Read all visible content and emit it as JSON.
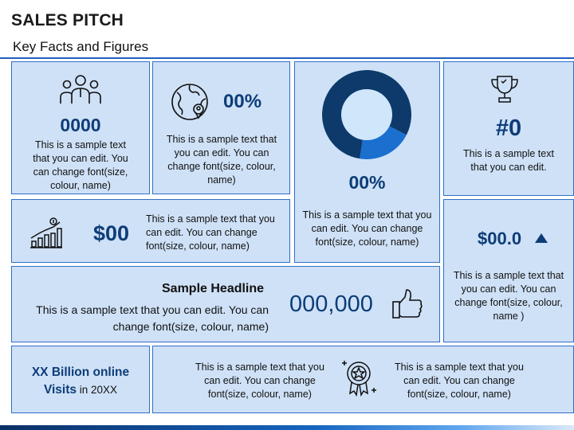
{
  "header": {
    "title": "SALES PITCH",
    "subtitle": "Key Facts and Figures"
  },
  "panel_people": {
    "icon": "people-group-icon",
    "value": "0000",
    "text": "This is a sample text that you can edit. You can change font(size, colour, name)"
  },
  "panel_globe": {
    "icon": "globe-location-icon",
    "value": "00%",
    "text": "This is a sample text that you can edit. You can change font(size, colour, name)"
  },
  "panel_donut": {
    "value": "00%",
    "text": "This is a sample text that you can edit. You can change font(size, colour, name)",
    "donut_share": 0.2,
    "colors": {
      "main": "#0d3a6b",
      "slice": "#1a6fcf",
      "hole": "#cfe6fb"
    }
  },
  "panel_trophy": {
    "icon": "trophy-icon",
    "value": "#0",
    "text": "This is a sample text that you can edit."
  },
  "panel_growth": {
    "icon": "growth-chart-dollar-icon",
    "value": "$00",
    "text": "This is a sample text that you can edit. You can change font(size, colour, name)"
  },
  "panel_increase": {
    "value": "$00.0",
    "icon": "triangle-up-icon",
    "text": "This is a sample text that you can edit. You can change font(size, colour, name )"
  },
  "panel_headline": {
    "headline": "Sample Headline",
    "text": "This is a sample text that you can edit. You can change font(size, colour, name)",
    "value": "000,000",
    "icon": "thumbs-up-icon"
  },
  "panel_visits": {
    "value_bold": "XX Billion online Visits",
    "value_suffix": " in 20XX"
  },
  "panel_bottom": {
    "text_left": "This is a sample text that you can edit. You can change font(size, colour, name)",
    "icon": "award-badge-icon",
    "text_right": "This is a sample text that you can edit. You can change font(size, colour, name)"
  },
  "colors": {
    "accent": "#1f5fbf",
    "panel_bg": "#cfe1f7",
    "value_text": "#0d3d78"
  }
}
